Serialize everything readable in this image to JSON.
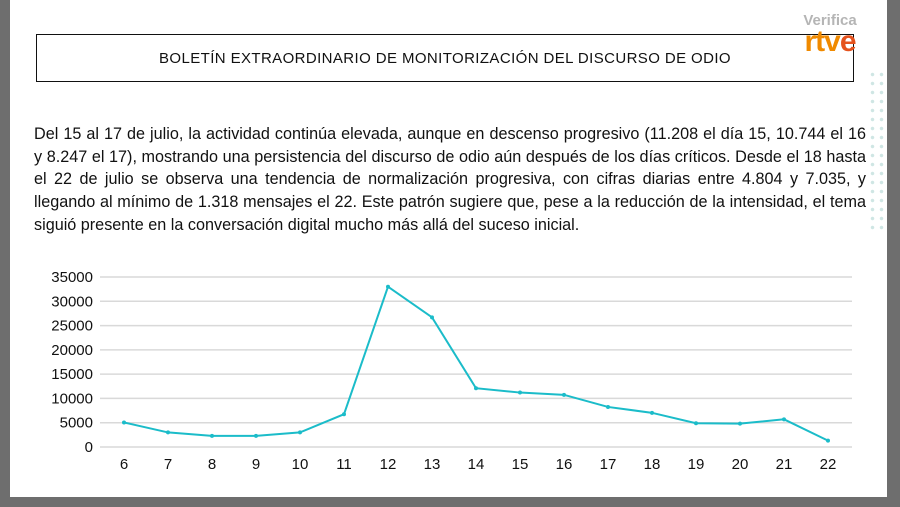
{
  "header": {
    "title": "BOLETÍN EXTRAORDINARIO DE MONITORIZACIÓN DEL DISCURSO DE ODIO"
  },
  "brand": {
    "verifica": "Verifica",
    "logo_text": "rtve"
  },
  "body": {
    "paragraph": "Del 15 al 17 de julio, la actividad continúa elevada, aunque en descenso progresivo (11.208 el día 15, 10.744 el 16 y 8.247 el 17), mostrando una persistencia del discurso de odio aún después de los días críticos. Desde el 18 hasta el 22 de julio se observa una tendencia de normalización progresiva, con cifras diarias entre 4.804 y 7.035, y llegando al mínimo de 1.318 mensajes el 22. Este patrón sugiere que, pese a la reducción de la intensidad, el tema siguió presente en la conversación digital mucho más allá del suceso inicial."
  },
  "chart_data": {
    "type": "line",
    "categories": [
      "6",
      "7",
      "8",
      "9",
      "10",
      "11",
      "12",
      "13",
      "14",
      "15",
      "16",
      "17",
      "18",
      "19",
      "20",
      "21",
      "22"
    ],
    "values": [
      5050,
      3000,
      2300,
      2300,
      3000,
      6750,
      33000,
      26700,
      12100,
      11208,
      10744,
      8247,
      7035,
      4900,
      4804,
      5700,
      1318
    ],
    "yticks": [
      "0",
      "5000",
      "10000",
      "15000",
      "20000",
      "25000",
      "30000",
      "35000"
    ],
    "ylim": [
      0,
      35000
    ],
    "grid": true,
    "line_color": "#1bbcc9"
  }
}
